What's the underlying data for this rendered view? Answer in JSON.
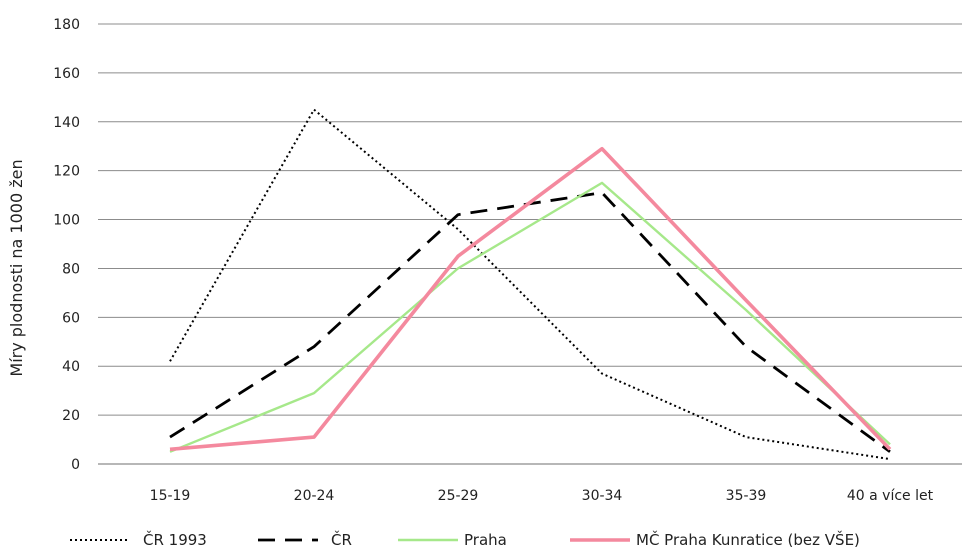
{
  "chart_data": {
    "type": "line",
    "title": "",
    "xlabel": "",
    "ylabel": "Míry plodnosti na 1000 žen",
    "ylim": [
      0,
      180
    ],
    "yticks": [
      0,
      20,
      40,
      60,
      80,
      100,
      120,
      140,
      160,
      180
    ],
    "grid": "horizontal",
    "legend_position": "bottom",
    "categories": [
      "15-19",
      "20-24",
      "25-29",
      "30-34",
      "35-39",
      "40 a více let"
    ],
    "series": [
      {
        "name": "ČR 1993",
        "color": "#000000",
        "style": "dotted",
        "values": [
          42,
          145,
          96,
          37,
          11,
          2
        ]
      },
      {
        "name": "ČR",
        "color": "#000000",
        "style": "dashed",
        "values": [
          11,
          48,
          102,
          111,
          48,
          5
        ]
      },
      {
        "name": "Praha",
        "color": "#a6e88a",
        "style": "solid",
        "values": [
          5,
          29,
          80,
          115,
          63,
          8
        ]
      },
      {
        "name": "MČ Praha Kunratice (bez VŠE)",
        "color": "#f4899e",
        "style": "solid",
        "values": [
          6,
          11,
          85,
          129,
          67,
          6
        ]
      }
    ]
  }
}
